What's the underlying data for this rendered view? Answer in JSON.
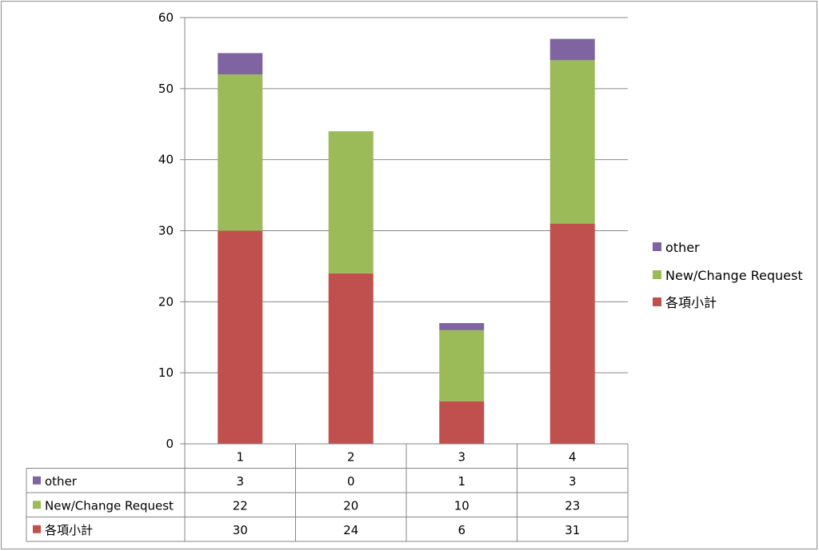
{
  "chart_data": {
    "type": "bar",
    "stacked": true,
    "categories": [
      "1",
      "2",
      "3",
      "4"
    ],
    "series": [
      {
        "name": "各項小計",
        "color": "#C0504D",
        "values": [
          30,
          24,
          6,
          31
        ]
      },
      {
        "name": "New/Change Request",
        "color": "#9BBB59",
        "values": [
          22,
          20,
          10,
          23
        ]
      },
      {
        "name": "other",
        "color": "#8064A2",
        "values": [
          3,
          0,
          1,
          3
        ]
      }
    ],
    "yticks": [
      0,
      10,
      20,
      30,
      40,
      50,
      60
    ],
    "ylim": [
      0,
      60
    ],
    "grid": true,
    "legend_position": "right",
    "data_table": true
  }
}
